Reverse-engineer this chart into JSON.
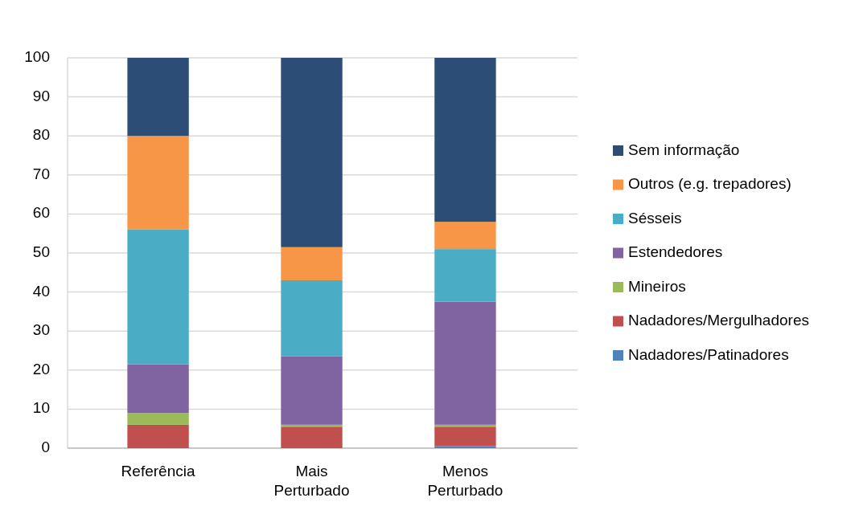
{
  "chart_data": {
    "type": "bar",
    "stacked": true,
    "categories": [
      "Referência",
      "Mais Perturbado",
      "Menos Perturbado"
    ],
    "series": [
      {
        "name": "Nadadores/Patinadores",
        "color": "#4f81bd",
        "values": [
          0,
          0,
          0.5
        ]
      },
      {
        "name": "Nadadores/Mergulhadores",
        "color": "#c0504d",
        "values": [
          6,
          5.5,
          5
        ]
      },
      {
        "name": "Mineiros",
        "color": "#9bbb59",
        "values": [
          3,
          0.5,
          0.5
        ]
      },
      {
        "name": "Estendedores",
        "color": "#8064a2",
        "values": [
          12.5,
          17.5,
          31.5
        ]
      },
      {
        "name": "Sésseis",
        "color": "#4bacc6",
        "values": [
          34.5,
          19.5,
          13.5
        ]
      },
      {
        "name": "Outros (e.g. trepadores)",
        "color": "#f79646",
        "values": [
          24,
          8.5,
          7
        ]
      },
      {
        "name": "Sem informação",
        "color": "#2c4d75",
        "values": [
          20,
          48.5,
          42
        ]
      }
    ],
    "ylim": [
      0,
      100
    ],
    "yticks": [
      0,
      10,
      20,
      30,
      40,
      50,
      60,
      70,
      80,
      90,
      100
    ],
    "grid": "y",
    "legend": "right"
  }
}
